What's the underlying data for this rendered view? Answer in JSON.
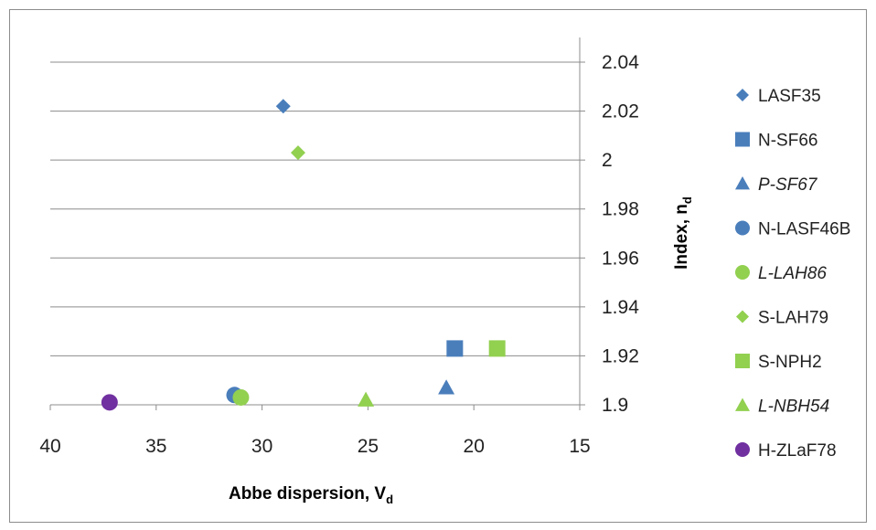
{
  "chart_data": {
    "type": "scatter",
    "xlabel": "Abbe dispersion, V",
    "xlabel_sub": "d",
    "ylabel": "Index, n",
    "ylabel_sub": "d",
    "xlim": [
      40,
      15
    ],
    "x_reversed": true,
    "ylim": [
      1.9,
      2.04
    ],
    "x_ticks": [
      "40",
      "35",
      "30",
      "25",
      "20",
      "15"
    ],
    "y_ticks": [
      "1.9",
      "1.92",
      "1.94",
      "1.96",
      "1.98",
      "2",
      "2.02",
      "2.04"
    ],
    "grid": "horizontal",
    "y_axis_side": "right",
    "legend_position": "right",
    "series": [
      {
        "name": "LASF35",
        "italic": false,
        "marker": "diamond",
        "color": "#4a7ebb",
        "x": [
          29.0
        ],
        "y": [
          2.022
        ]
      },
      {
        "name": "N-SF66",
        "italic": false,
        "marker": "square",
        "color": "#4a7ebb",
        "x": [
          20.9
        ],
        "y": [
          1.923
        ]
      },
      {
        "name": "P-SF67",
        "italic": true,
        "marker": "triangle",
        "color": "#4a7ebb",
        "x": [
          21.3
        ],
        "y": [
          1.907
        ]
      },
      {
        "name": "N-LASF46B",
        "italic": false,
        "marker": "circle",
        "color": "#4a7ebb",
        "x": [
          31.3
        ],
        "y": [
          1.904
        ]
      },
      {
        "name": "L-LAH86",
        "italic": true,
        "marker": "circle",
        "color": "#92d050",
        "x": [
          31.0
        ],
        "y": [
          1.903
        ]
      },
      {
        "name": "S-LAH79",
        "italic": false,
        "marker": "diamond",
        "color": "#92d050",
        "x": [
          28.3
        ],
        "y": [
          2.003
        ]
      },
      {
        "name": "S-NPH2",
        "italic": false,
        "marker": "square",
        "color": "#92d050",
        "x": [
          18.9
        ],
        "y": [
          1.923
        ]
      },
      {
        "name": "L-NBH54",
        "italic": true,
        "marker": "triangle",
        "color": "#92d050",
        "x": [
          25.1
        ],
        "y": [
          1.902
        ]
      },
      {
        "name": "H-ZLaF78",
        "italic": false,
        "marker": "circle",
        "color": "#7030a0",
        "x": [
          37.2
        ],
        "y": [
          1.901
        ]
      }
    ]
  }
}
